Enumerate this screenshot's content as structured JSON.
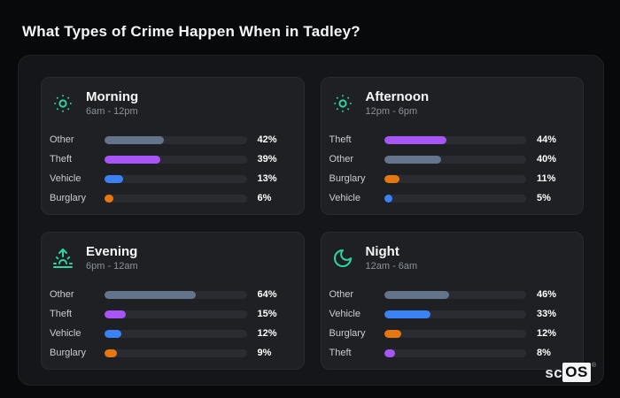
{
  "page": {
    "title": "What Types of Crime Happen When in Tadley?"
  },
  "colors": {
    "other": "#64748b",
    "theft": "#a855f7",
    "vehicle": "#3b82f6",
    "burglary": "#e6760f",
    "icon_accent": "#2dd4a4",
    "track": "#2a2c31",
    "card_bg": "#1e2024",
    "panel_bg": "#15161a",
    "page_bg": "#08090b"
  },
  "cards": [
    {
      "id": "morning",
      "title": "Morning",
      "subtitle": "6am - 12pm",
      "icon": "sun-dim-icon",
      "rows": [
        {
          "label": "Other",
          "value": 42,
          "pct": "42%",
          "color": "#64748b"
        },
        {
          "label": "Theft",
          "value": 39,
          "pct": "39%",
          "color": "#a855f7"
        },
        {
          "label": "Vehicle",
          "value": 13,
          "pct": "13%",
          "color": "#3b82f6"
        },
        {
          "label": "Burglary",
          "value": 6,
          "pct": "6%",
          "color": "#e6760f"
        }
      ]
    },
    {
      "id": "afternoon",
      "title": "Afternoon",
      "subtitle": "12pm - 6pm",
      "icon": "sun-dim-icon",
      "rows": [
        {
          "label": "Theft",
          "value": 44,
          "pct": "44%",
          "color": "#a855f7"
        },
        {
          "label": "Other",
          "value": 40,
          "pct": "40%",
          "color": "#64748b"
        },
        {
          "label": "Burglary",
          "value": 11,
          "pct": "11%",
          "color": "#e6760f"
        },
        {
          "label": "Vehicle",
          "value": 5,
          "pct": "5%",
          "color": "#3b82f6"
        }
      ]
    },
    {
      "id": "evening",
      "title": "Evening",
      "subtitle": "6pm - 12am",
      "icon": "sunrise-icon",
      "rows": [
        {
          "label": "Other",
          "value": 64,
          "pct": "64%",
          "color": "#64748b"
        },
        {
          "label": "Theft",
          "value": 15,
          "pct": "15%",
          "color": "#a855f7"
        },
        {
          "label": "Vehicle",
          "value": 12,
          "pct": "12%",
          "color": "#3b82f6"
        },
        {
          "label": "Burglary",
          "value": 9,
          "pct": "9%",
          "color": "#e6760f"
        }
      ]
    },
    {
      "id": "night",
      "title": "Night",
      "subtitle": "12am - 6am",
      "icon": "moon-icon",
      "rows": [
        {
          "label": "Other",
          "value": 46,
          "pct": "46%",
          "color": "#64748b"
        },
        {
          "label": "Vehicle",
          "value": 33,
          "pct": "33%",
          "color": "#3b82f6"
        },
        {
          "label": "Burglary",
          "value": 12,
          "pct": "12%",
          "color": "#e6760f"
        },
        {
          "label": "Theft",
          "value": 8,
          "pct": "8%",
          "color": "#a855f7"
        }
      ]
    }
  ],
  "watermark": {
    "prefix": "sc",
    "suffix": "OS",
    "reg": "®"
  },
  "chart_data": [
    {
      "type": "bar",
      "orientation": "horizontal",
      "title": "Morning",
      "subtitle": "6am - 12pm",
      "categories": [
        "Other",
        "Theft",
        "Vehicle",
        "Burglary"
      ],
      "values": [
        42,
        39,
        13,
        6
      ],
      "value_unit": "%",
      "xlim": [
        0,
        100
      ],
      "grid": false,
      "legend": false
    },
    {
      "type": "bar",
      "orientation": "horizontal",
      "title": "Afternoon",
      "subtitle": "12pm - 6pm",
      "categories": [
        "Theft",
        "Other",
        "Burglary",
        "Vehicle"
      ],
      "values": [
        44,
        40,
        11,
        5
      ],
      "value_unit": "%",
      "xlim": [
        0,
        100
      ],
      "grid": false,
      "legend": false
    },
    {
      "type": "bar",
      "orientation": "horizontal",
      "title": "Evening",
      "subtitle": "6pm - 12am",
      "categories": [
        "Other",
        "Theft",
        "Vehicle",
        "Burglary"
      ],
      "values": [
        64,
        15,
        12,
        9
      ],
      "value_unit": "%",
      "xlim": [
        0,
        100
      ],
      "grid": false,
      "legend": false
    },
    {
      "type": "bar",
      "orientation": "horizontal",
      "title": "Night",
      "subtitle": "12am - 6am",
      "categories": [
        "Other",
        "Vehicle",
        "Burglary",
        "Theft"
      ],
      "values": [
        46,
        33,
        12,
        8
      ],
      "value_unit": "%",
      "xlim": [
        0,
        100
      ],
      "grid": false,
      "legend": false
    }
  ]
}
